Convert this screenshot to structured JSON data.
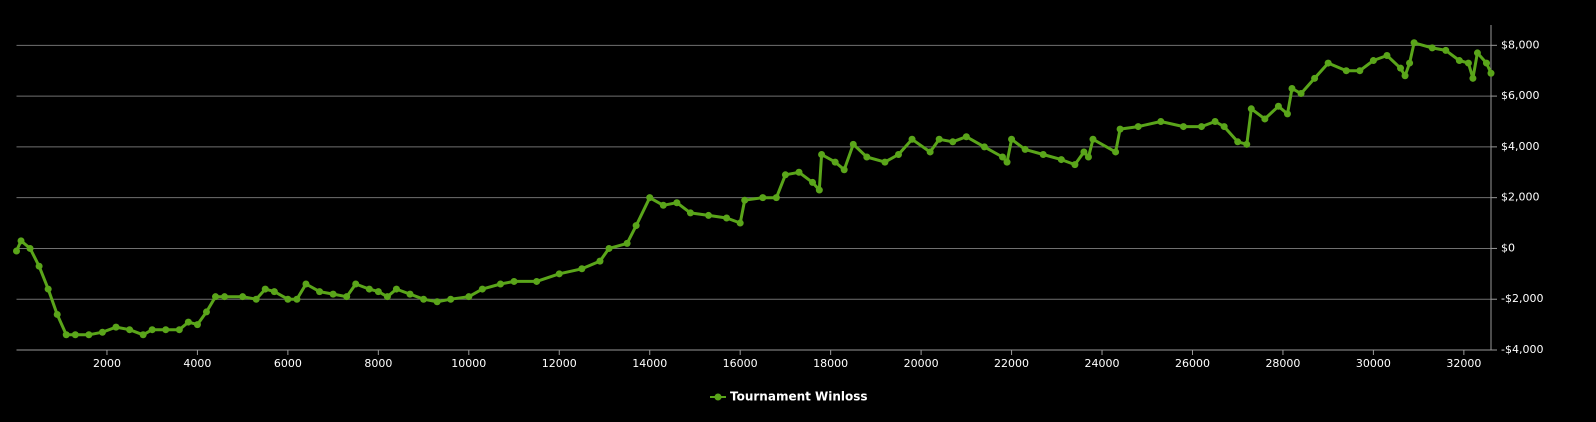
{
  "chart_data": {
    "type": "line",
    "x": [
      0,
      100,
      300,
      500,
      700,
      900,
      1100,
      1300,
      1600,
      1900,
      2200,
      2500,
      2800,
      3000,
      3300,
      3600,
      3800,
      4000,
      4200,
      4400,
      4600,
      5000,
      5300,
      5500,
      5700,
      6000,
      6200,
      6400,
      6700,
      7000,
      7300,
      7500,
      7800,
      8000,
      8200,
      8400,
      8700,
      9000,
      9300,
      9600,
      10000,
      10300,
      10700,
      11000,
      11500,
      12000,
      12500,
      12900,
      13100,
      13500,
      13700,
      14000,
      14300,
      14600,
      14900,
      15300,
      15700,
      16000,
      16100,
      16500,
      16800,
      17000,
      17300,
      17600,
      17750,
      17800,
      18100,
      18300,
      18500,
      18800,
      19200,
      19500,
      19800,
      20200,
      20400,
      20700,
      21000,
      21400,
      21800,
      21900,
      22000,
      22300,
      22700,
      23100,
      23400,
      23600,
      23700,
      23800,
      24300,
      24400,
      24800,
      25300,
      25800,
      26200,
      26500,
      26700,
      27000,
      27200,
      27300,
      27600,
      27900,
      28100,
      28200,
      28400,
      28700,
      29000,
      29400,
      29700,
      30000,
      30300,
      30600,
      30700,
      30800,
      30900,
      31300,
      31600,
      31900,
      32100,
      32200,
      32300,
      32500,
      32600
    ],
    "series": [
      {
        "name": "Tournament Winloss",
        "color": "#5aa51a",
        "values": [
          -100,
          300,
          0,
          -700,
          -1600,
          -2600,
          -3400,
          -3400,
          -3400,
          -3300,
          -3100,
          -3200,
          -3400,
          -3200,
          -3200,
          -3200,
          -2900,
          -3000,
          -2500,
          -1900,
          -1900,
          -1900,
          -2000,
          -1600,
          -1700,
          -2000,
          -2000,
          -1400,
          -1700,
          -1800,
          -1900,
          -1400,
          -1600,
          -1700,
          -1900,
          -1600,
          -1800,
          -2000,
          -2100,
          -2000,
          -1900,
          -1600,
          -1400,
          -1300,
          -1300,
          -1000,
          -800,
          -500,
          0,
          200,
          900,
          2000,
          1700,
          1800,
          1400,
          1300,
          1200,
          1000,
          1900,
          2000,
          2000,
          2900,
          3000,
          2600,
          2300,
          3700,
          3400,
          3100,
          4100,
          3600,
          3400,
          3700,
          4300,
          3800,
          4300,
          4200,
          4400,
          4000,
          3600,
          3400,
          4300,
          3900,
          3700,
          3500,
          3300,
          3800,
          3600,
          4300,
          3800,
          4700,
          4800,
          5000,
          4800,
          4800,
          5000,
          4800,
          4200,
          4100,
          5500,
          5100,
          5600,
          5300,
          6300,
          6100,
          6700,
          7300,
          7000,
          7000,
          7400,
          7600,
          7100,
          6800,
          7300,
          8100,
          7900,
          7800,
          7400,
          7300,
          6700,
          7700,
          7300,
          6900
        ]
      }
    ],
    "xlim": [
      0,
      32600
    ],
    "xticks": [
      2000,
      4000,
      6000,
      8000,
      10000,
      12000,
      14000,
      16000,
      18000,
      20000,
      22000,
      24000,
      26000,
      28000,
      30000,
      32000
    ],
    "ylim": [
      -4000,
      8800
    ],
    "yticks": [
      {
        "value": -4000,
        "label": "-$4,000"
      },
      {
        "value": -2000,
        "label": "-$2,000"
      },
      {
        "value": 0,
        "label": "$0"
      },
      {
        "value": 2000,
        "label": "$2,000"
      },
      {
        "value": 4000,
        "label": "$4,000"
      },
      {
        "value": 6000,
        "label": "$6,000"
      },
      {
        "value": 8000,
        "label": "$8,000"
      }
    ],
    "grid": true,
    "legend": "bottom"
  }
}
